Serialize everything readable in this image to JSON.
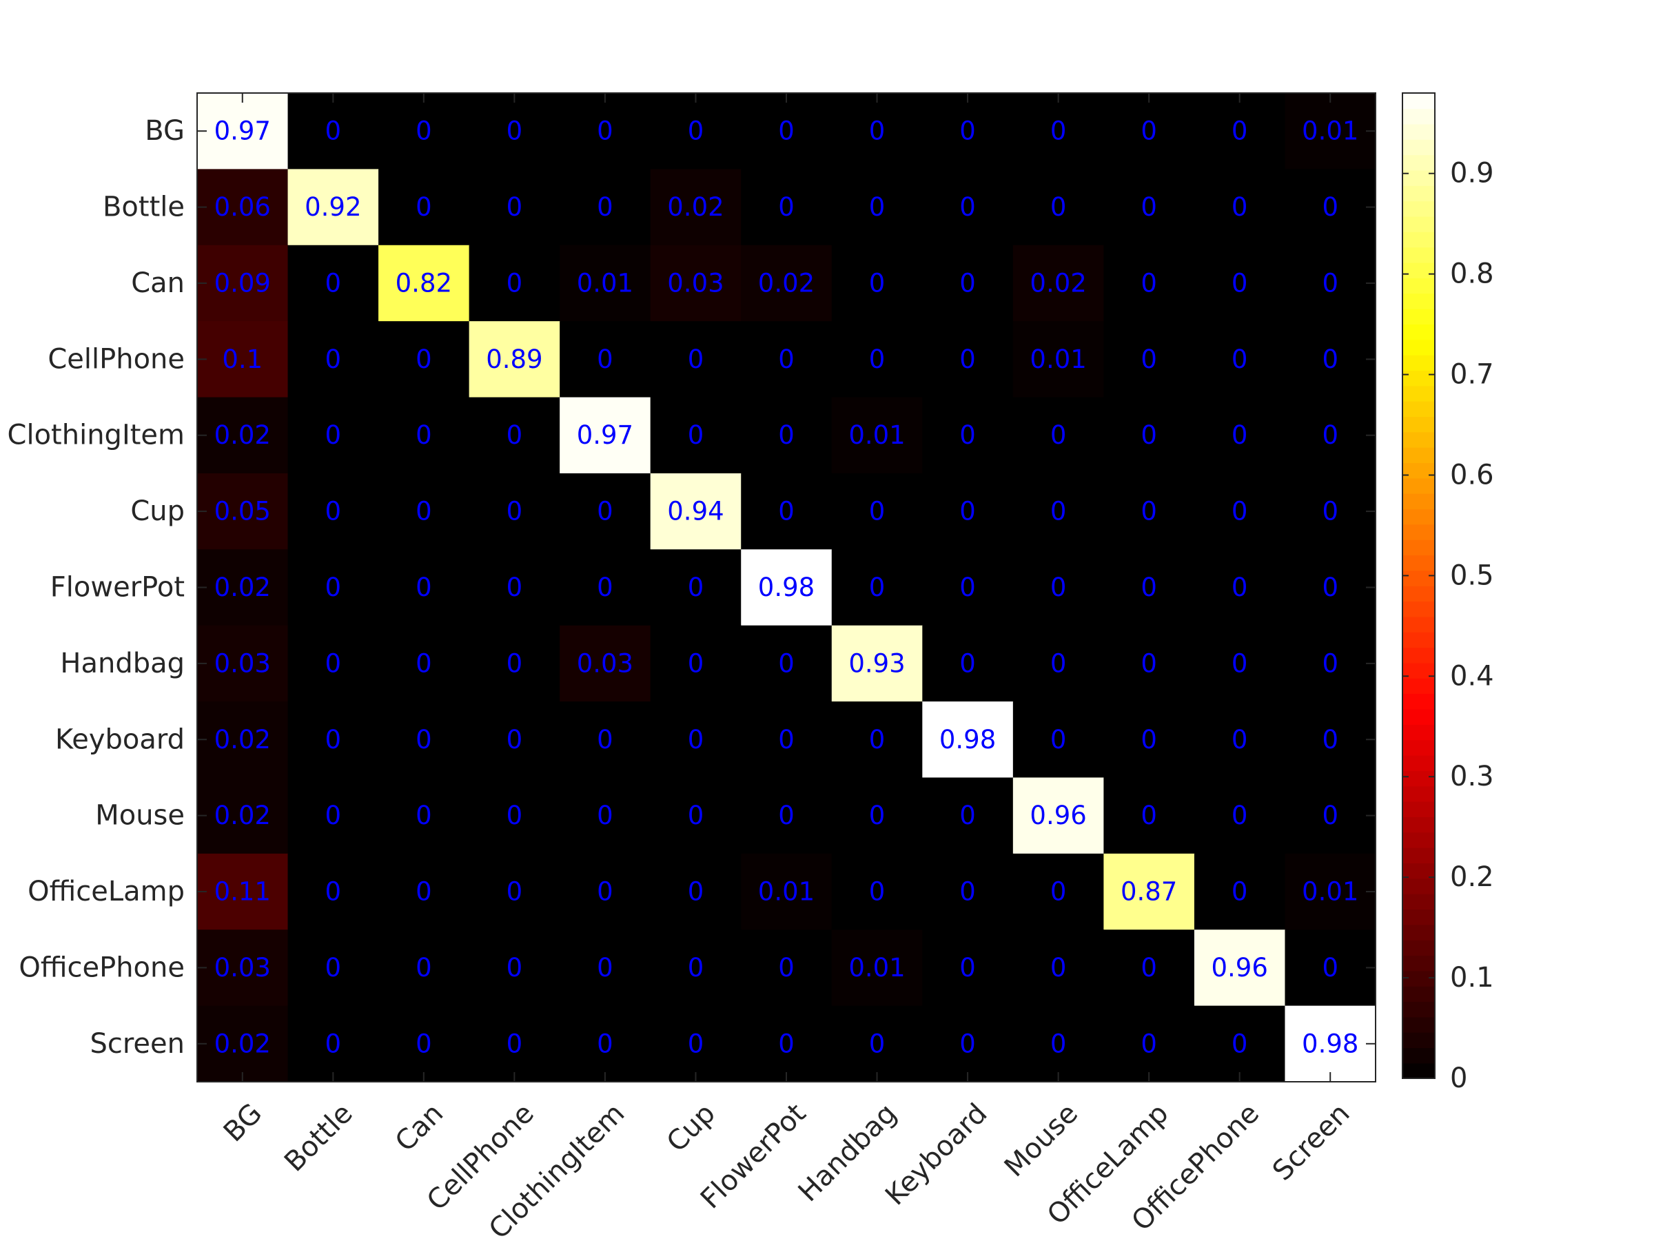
{
  "chart_data": {
    "type": "heatmap",
    "title": "",
    "xlabel": "",
    "ylabel": "",
    "x_categories": [
      "BG",
      "Bottle",
      "Can",
      "CellPhone",
      "ClothingItem",
      "Cup",
      "FlowerPot",
      "Handbag",
      "Keyboard",
      "Mouse",
      "OfficeLamp",
      "OfficePhone",
      "Screen"
    ],
    "y_categories": [
      "BG",
      "Bottle",
      "Can",
      "CellPhone",
      "ClothingItem",
      "Cup",
      "FlowerPot",
      "Handbag",
      "Keyboard",
      "Mouse",
      "OfficeLamp",
      "OfficePhone",
      "Screen"
    ],
    "values": [
      [
        0.97,
        0,
        0,
        0,
        0,
        0,
        0,
        0,
        0,
        0,
        0,
        0,
        0.01
      ],
      [
        0.06,
        0.92,
        0,
        0,
        0,
        0.02,
        0,
        0,
        0,
        0,
        0,
        0,
        0
      ],
      [
        0.09,
        0,
        0.82,
        0,
        0.01,
        0.03,
        0.02,
        0,
        0,
        0.02,
        0,
        0,
        0
      ],
      [
        0.1,
        0,
        0,
        0.89,
        0,
        0,
        0,
        0,
        0,
        0.01,
        0,
        0,
        0
      ],
      [
        0.02,
        0,
        0,
        0,
        0.97,
        0,
        0,
        0.01,
        0,
        0,
        0,
        0,
        0
      ],
      [
        0.05,
        0,
        0,
        0,
        0,
        0.94,
        0,
        0,
        0,
        0,
        0,
        0,
        0
      ],
      [
        0.02,
        0,
        0,
        0,
        0,
        0,
        0.98,
        0,
        0,
        0,
        0,
        0,
        0
      ],
      [
        0.03,
        0,
        0,
        0,
        0.03,
        0,
        0,
        0.93,
        0,
        0,
        0,
        0,
        0
      ],
      [
        0.02,
        0,
        0,
        0,
        0,
        0,
        0,
        0,
        0.98,
        0,
        0,
        0,
        0
      ],
      [
        0.02,
        0,
        0,
        0,
        0,
        0,
        0,
        0,
        0,
        0.96,
        0,
        0,
        0
      ],
      [
        0.11,
        0,
        0,
        0,
        0,
        0,
        0.01,
        0,
        0,
        0,
        0.87,
        0,
        0.01
      ],
      [
        0.03,
        0,
        0,
        0,
        0,
        0,
        0,
        0.01,
        0,
        0,
        0,
        0.96,
        0
      ],
      [
        0.02,
        0,
        0,
        0,
        0,
        0,
        0,
        0,
        0,
        0,
        0,
        0,
        0.98
      ]
    ],
    "colormap": "hot",
    "color_range": [
      0,
      0.98
    ],
    "colorbar": {
      "ticks": [
        0,
        0.1,
        0.2,
        0.3,
        0.4,
        0.5,
        0.6,
        0.7,
        0.8,
        0.9
      ]
    },
    "annotation_color": "#0000ff",
    "grid": false,
    "legend": "none",
    "x_tick_rotation_deg": 45
  }
}
